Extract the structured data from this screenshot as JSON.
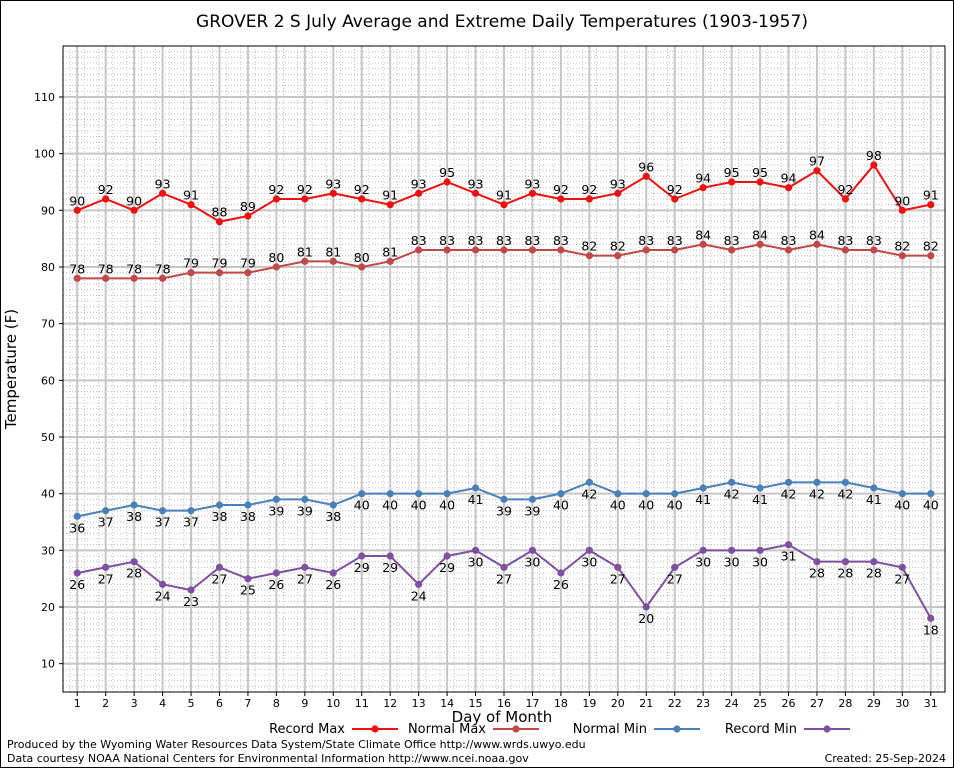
{
  "footer": {
    "produced_by": "Produced by the Wyoming Water Resources Data System/State Climate Office http://www.wrds.uwyo.edu",
    "courtesy": "Data courtesy NOAA National Centers for Environmental Information http://www.ncei.noaa.gov",
    "created": "Created:  25-Sep-2024"
  },
  "chart_data": {
    "type": "line",
    "title": "GROVER 2 S July Average and Extreme Daily Temperatures (1903-1957)",
    "xlabel": "Day of Month",
    "ylabel": "Temperature (F)",
    "ylim": [
      5,
      119
    ],
    "yticks": [
      10,
      20,
      30,
      40,
      50,
      60,
      70,
      80,
      90,
      100,
      110
    ],
    "x": [
      1,
      2,
      3,
      4,
      5,
      6,
      7,
      8,
      9,
      10,
      11,
      12,
      13,
      14,
      15,
      16,
      17,
      18,
      19,
      20,
      21,
      22,
      23,
      24,
      25,
      26,
      27,
      28,
      29,
      30,
      31
    ],
    "grid": true,
    "legend_position": "bottom",
    "series": [
      {
        "name": "Record Max",
        "color": "#ee1111",
        "label_pos": "above",
        "values": [
          90,
          92,
          90,
          93,
          91,
          88,
          89,
          92,
          92,
          93,
          92,
          91,
          93,
          95,
          93,
          91,
          93,
          92,
          92,
          93,
          96,
          92,
          94,
          95,
          95,
          94,
          97,
          92,
          98,
          90,
          91
        ]
      },
      {
        "name": "Normal Max",
        "color": "#c04848",
        "label_pos": "above",
        "values": [
          78,
          78,
          78,
          78,
          79,
          79,
          79,
          80,
          81,
          81,
          80,
          81,
          83,
          83,
          83,
          83,
          83,
          83,
          82,
          82,
          83,
          83,
          84,
          83,
          84,
          83,
          84,
          83,
          83,
          82,
          82
        ]
      },
      {
        "name": "Normal Min",
        "color": "#4a80b8",
        "label_pos": "below",
        "values": [
          36,
          37,
          38,
          37,
          37,
          38,
          38,
          39,
          39,
          38,
          40,
          40,
          40,
          40,
          41,
          39,
          39,
          40,
          42,
          40,
          40,
          40,
          41,
          42,
          41,
          42,
          42,
          42,
          41,
          40,
          40
        ]
      },
      {
        "name": "Record Min",
        "color": "#8050a0",
        "label_pos": "below",
        "values": [
          26,
          27,
          28,
          24,
          23,
          27,
          25,
          26,
          27,
          26,
          29,
          29,
          24,
          29,
          30,
          27,
          30,
          26,
          30,
          27,
          20,
          27,
          30,
          30,
          30,
          31,
          28,
          28,
          28,
          27,
          18
        ]
      }
    ]
  }
}
